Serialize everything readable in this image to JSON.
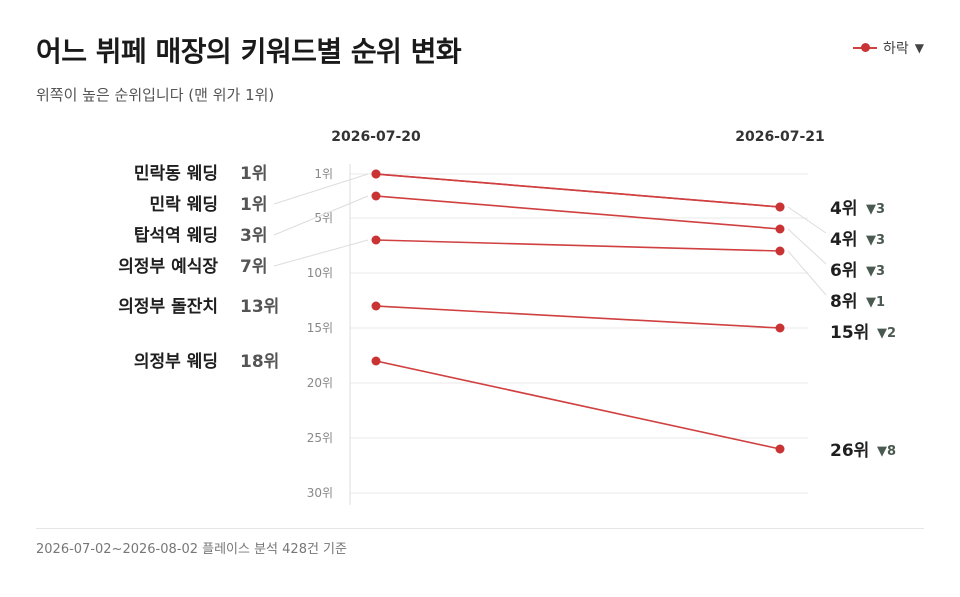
{
  "header": {
    "title": "어느 뷔페 매장의 키워드별 순위 변화",
    "subtitle": "위쪽이 높은 순위입니다 (맨 위가 1위)",
    "legend_label": "하락",
    "legend_marker": "▼"
  },
  "footer": {
    "note": "2026-07-02~2026-08-02 플레이스 분석 428건 기준"
  },
  "colors": {
    "line": "#d04040",
    "point": "#c93333",
    "grid": "#e8e8e8",
    "down_marker": "#4a5a50"
  },
  "chart_data": {
    "type": "line",
    "chart_style": "slope",
    "title": "어느 뷔페 매장의 키워드별 순위 변화",
    "subtitle": "위쪽이 높은 순위입니다 (맨 위가 1위)",
    "x": [
      "2026-07-20",
      "2026-07-21"
    ],
    "y_axis": {
      "reversed": true,
      "range": [
        1,
        30
      ],
      "ticks": [
        1,
        5,
        10,
        15,
        20,
        25,
        30
      ],
      "tick_suffix": "위"
    },
    "rank_suffix": "위",
    "grid": true,
    "legend": {
      "position": "top-right",
      "entries": [
        "하락"
      ]
    },
    "series": [
      {
        "name": "민락동 웨딩",
        "values": [
          1,
          4
        ],
        "change": "▼3"
      },
      {
        "name": "민락 웨딩",
        "values": [
          1,
          4
        ],
        "change": "▼3"
      },
      {
        "name": "탑석역 웨딩",
        "values": [
          3,
          6
        ],
        "change": "▼3"
      },
      {
        "name": "의정부 예식장",
        "values": [
          7,
          8
        ],
        "change": "▼1"
      },
      {
        "name": "의정부 돌잔치",
        "values": [
          13,
          15
        ],
        "change": "▼2"
      },
      {
        "name": "의정부 웨딩",
        "values": [
          18,
          26
        ],
        "change": "▼8"
      }
    ]
  }
}
